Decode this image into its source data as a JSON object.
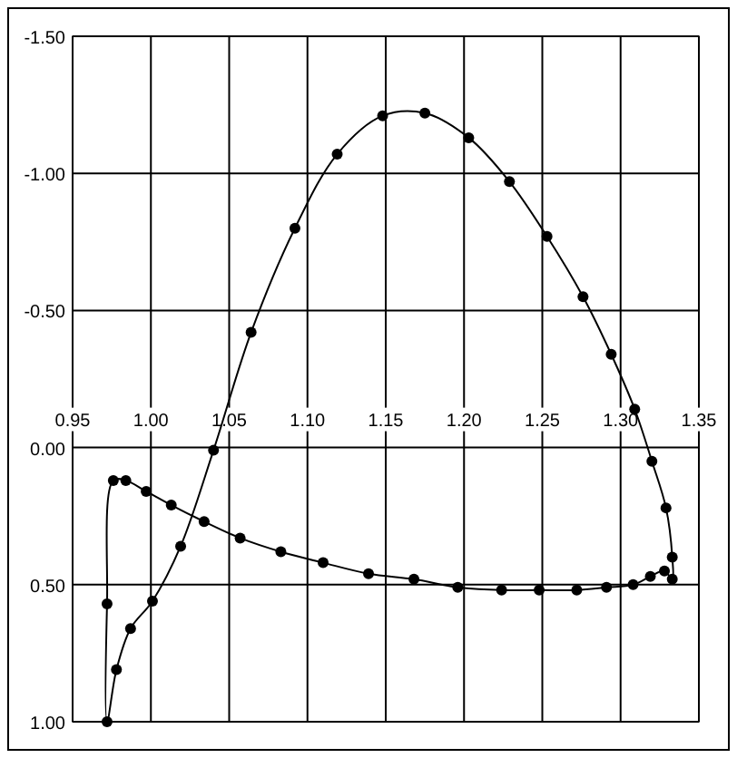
{
  "chart_data": {
    "type": "line",
    "xlim": [
      0.95,
      1.35
    ],
    "ylim": [
      1.0,
      -1.5
    ],
    "xticks": [
      {
        "value": 0.95,
        "label": "0.95"
      },
      {
        "value": 1.0,
        "label": "1.00"
      },
      {
        "value": 1.05,
        "label": "1.05"
      },
      {
        "value": 1.1,
        "label": "1.10"
      },
      {
        "value": 1.15,
        "label": "1.15"
      },
      {
        "value": 1.2,
        "label": "1.20"
      },
      {
        "value": 1.25,
        "label": "1.25"
      },
      {
        "value": 1.3,
        "label": "1.30"
      },
      {
        "value": 1.35,
        "label": "1.35"
      }
    ],
    "yticks": [
      {
        "value": -1.5,
        "label": "-1.50"
      },
      {
        "value": -1.0,
        "label": "-1.00"
      },
      {
        "value": -0.5,
        "label": "-0.50"
      },
      {
        "value": 0,
        "label": "0.00"
      },
      {
        "value": 0.5,
        "label": "0.50"
      },
      {
        "value": 1.0,
        "label": "1.00"
      }
    ],
    "grid": true,
    "marker": "circle",
    "line_style": "solid",
    "series": [
      {
        "type": "scatter",
        "color": "#000000",
        "x": [
          0.972,
          0.978,
          0.987,
          1.001,
          1.019,
          1.04,
          1.064,
          1.092,
          1.119,
          1.148,
          1.175,
          1.203,
          1.229,
          1.253,
          1.276,
          1.294,
          1.309,
          1.32,
          1.329,
          1.333,
          1.333,
          1.328,
          1.319,
          1.308,
          1.291,
          1.272,
          1.248,
          1.224,
          1.196,
          1.168,
          1.139,
          1.11,
          1.083,
          1.057,
          1.034,
          1.013,
          0.997,
          0.984,
          0.976,
          0.972
        ],
        "values": [
          1.0,
          0.81,
          0.66,
          0.56,
          0.36,
          0.01,
          -0.42,
          -0.8,
          -1.07,
          -1.21,
          -1.22,
          -1.13,
          -0.97,
          -0.77,
          -0.55,
          -0.34,
          -0.14,
          0.05,
          0.22,
          0.4,
          0.48,
          0.45,
          0.47,
          0.5,
          0.51,
          0.52,
          0.52,
          0.52,
          0.51,
          0.48,
          0.46,
          0.42,
          0.38,
          0.33,
          0.27,
          0.21,
          0.16,
          0.12,
          0.12,
          0.57
        ]
      }
    ]
  }
}
